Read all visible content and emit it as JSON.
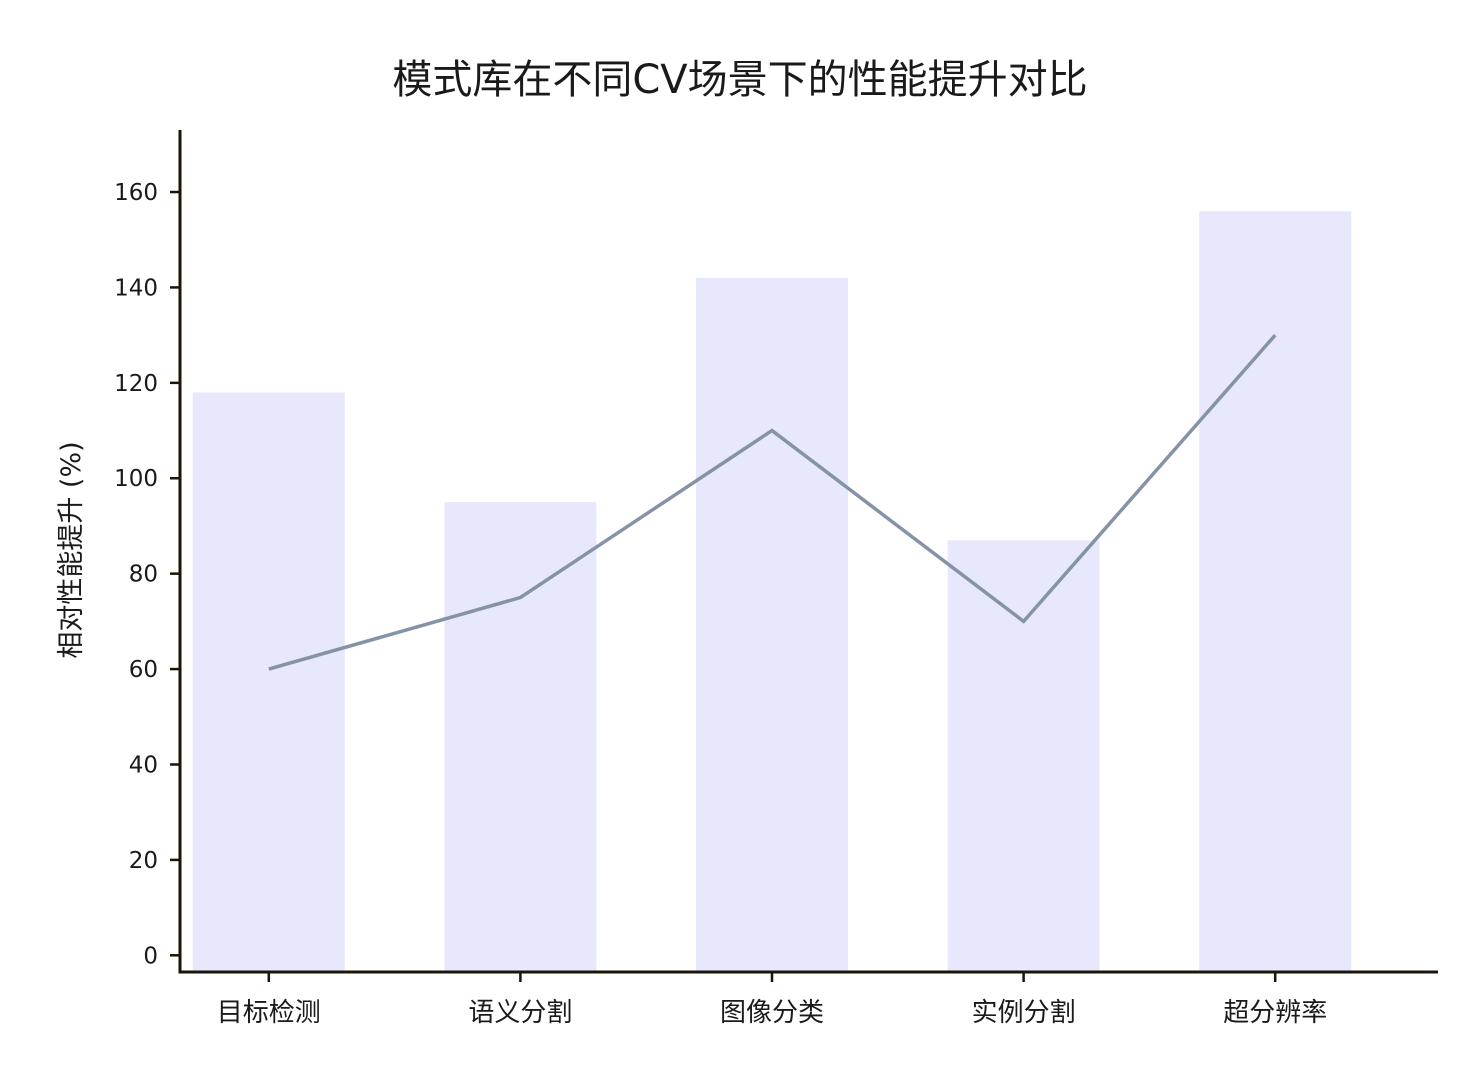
{
  "chart_data": {
    "type": "bar",
    "title": "模式库在不同CV场景下的性能提升对比",
    "xlabel": "",
    "ylabel": "相对性能提升 (%)",
    "categories": [
      "目标检测",
      "语义分割",
      "图像分类",
      "实例分割",
      "超分辨率"
    ],
    "series": [
      {
        "kind": "bar",
        "values": [
          118,
          95,
          142,
          87,
          156
        ]
      },
      {
        "kind": "line",
        "values": [
          60,
          75,
          110,
          70,
          130
        ]
      }
    ],
    "ylim": [
      -3.5,
      173
    ],
    "yticks": [
      0,
      20,
      40,
      60,
      80,
      100,
      120,
      140,
      160
    ],
    "grid": false,
    "legend": "none"
  },
  "colors": {
    "bar": "#e8e8fc",
    "line": "#8593a6",
    "axis": "#1a1606",
    "text": "#1a1a1a"
  }
}
